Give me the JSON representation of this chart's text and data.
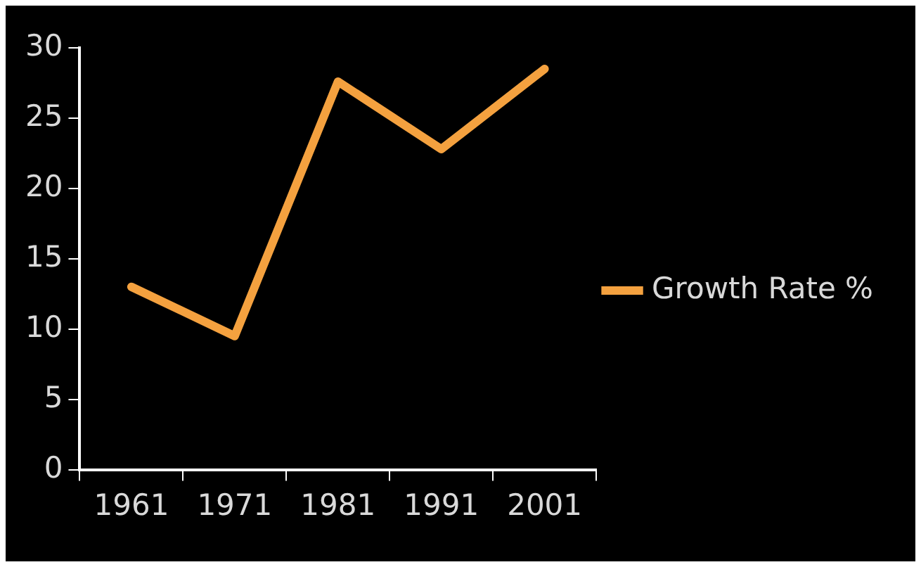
{
  "chart_data": {
    "type": "line",
    "categories": [
      "1961",
      "1971",
      "1981",
      "1991",
      "2001"
    ],
    "series": [
      {
        "name": "Growth Rate %",
        "color": "#f4a13f",
        "values": [
          13,
          9.5,
          27.6,
          22.8,
          28.5
        ]
      }
    ],
    "ylim": [
      0,
      30
    ],
    "yticks": [
      0,
      5,
      10,
      15,
      20,
      25,
      30
    ],
    "grid": false,
    "legend": "right",
    "marker": "none",
    "line_style": "solid"
  }
}
